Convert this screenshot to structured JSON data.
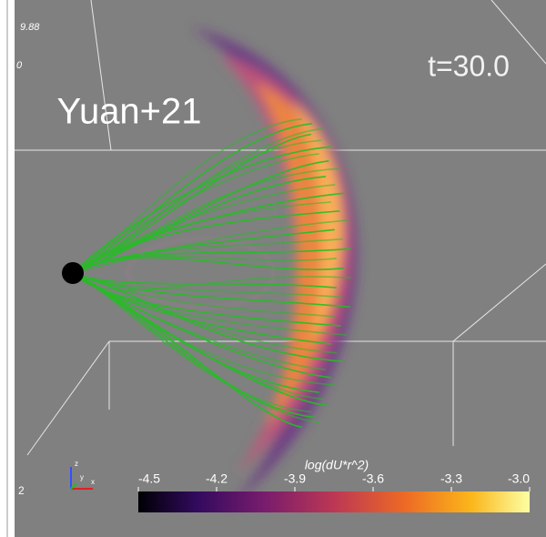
{
  "corner_labels": {
    "top_value": "9.88",
    "top_mark": "0",
    "bottom_value": "2"
  },
  "time_label": "t=30.0",
  "reference": "Yuan+21",
  "axes_triad": {
    "z": "z",
    "x": "x",
    "y": "y"
  },
  "colorbar": {
    "title": "log(dU*r^2)",
    "lim": [
      -4.5,
      -3
    ],
    "ticks": [
      -4.5,
      -4.2,
      -3.9,
      -3.6,
      -3.3,
      {
        "value": -3,
        "label": "-3.0"
      }
    ]
  }
}
